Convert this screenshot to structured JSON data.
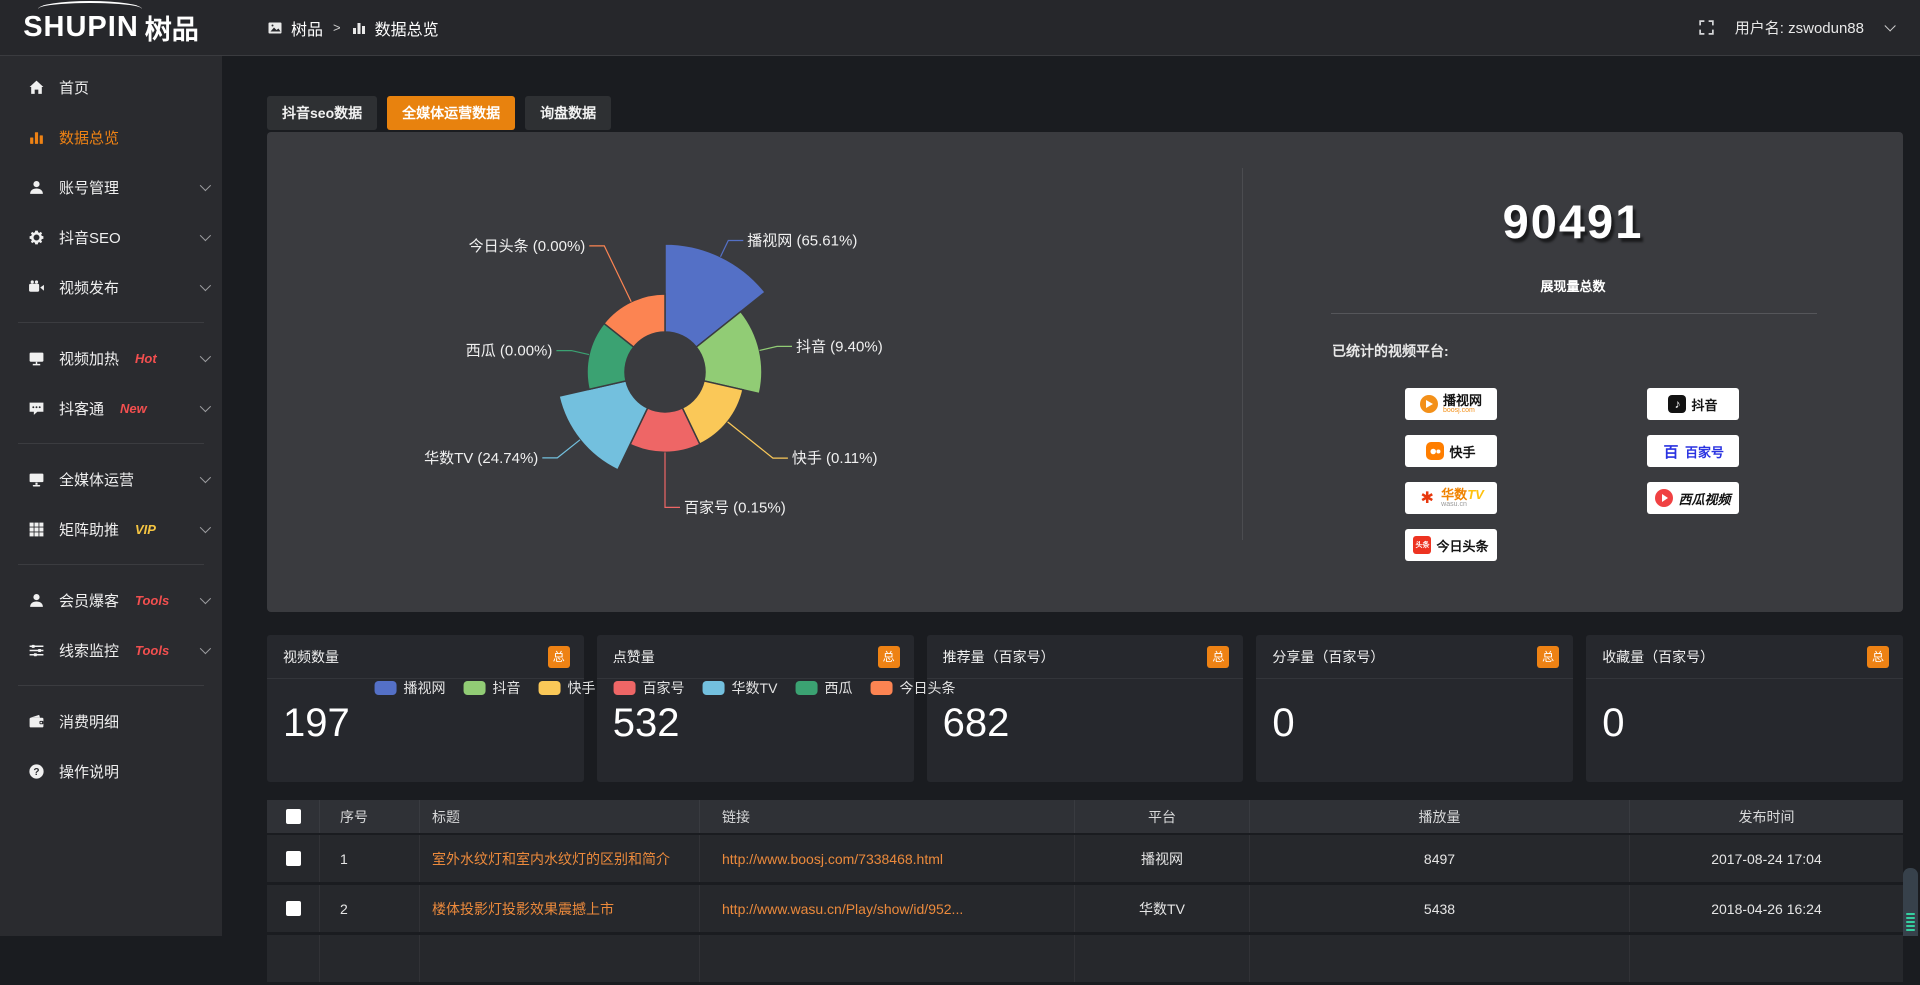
{
  "header": {
    "logo": "SHUPIN",
    "logo_cn": "树品",
    "breadcrumb": {
      "root": "树品",
      "separator": ">",
      "current": "数据总览"
    },
    "username_label": "用户名:",
    "username": "zswodun88"
  },
  "sidebar": {
    "items": [
      {
        "label": "首页",
        "icon": "home"
      },
      {
        "label": "数据总览",
        "icon": "chart",
        "active": true
      },
      {
        "label": "账号管理",
        "icon": "user",
        "chevron": true
      },
      {
        "label": "抖音SEO",
        "icon": "gear",
        "chevron": true
      },
      {
        "label": "视频发布",
        "icon": "video",
        "chevron": true
      },
      {
        "divider": true
      },
      {
        "label": "视频加热",
        "icon": "heat",
        "badge": "Hot",
        "badge_style": "red",
        "chevron": true
      },
      {
        "label": "抖客通",
        "icon": "chat",
        "badge": "New",
        "badge_style": "red",
        "chevron": true
      },
      {
        "divider": true
      },
      {
        "label": "全媒体运营",
        "icon": "monitor",
        "chevron": true
      },
      {
        "label": "矩阵助推",
        "icon": "grid",
        "badge": "VIP",
        "badge_style": "yellow",
        "chevron": true
      },
      {
        "divider": true
      },
      {
        "label": "会员爆客",
        "icon": "user",
        "badge": "Tools",
        "badge_style": "red",
        "chevron": true
      },
      {
        "label": "线索监控",
        "icon": "sliders",
        "badge": "Tools",
        "badge_style": "red",
        "chevron": true
      },
      {
        "divider": true
      },
      {
        "label": "消费明细",
        "icon": "wallet"
      },
      {
        "label": "操作说明",
        "icon": "question"
      }
    ]
  },
  "tabs": [
    {
      "label": "抖音seo数据",
      "active": false
    },
    {
      "label": "全媒体运营数据",
      "active": true
    },
    {
      "label": "询盘数据",
      "active": false
    }
  ],
  "chart_data": {
    "type": "pie",
    "rose": true,
    "categories": [
      "播视网",
      "抖音",
      "快手",
      "百家号",
      "华数TV",
      "西瓜",
      "今日头条"
    ],
    "values": [
      65.61,
      9.4,
      0.11,
      0.15,
      24.74,
      0.0,
      0.0
    ],
    "unit": "%",
    "colors": [
      "#5470c6",
      "#91cc75",
      "#fac858",
      "#ee6666",
      "#73c0de",
      "#3ba272",
      "#fc8452"
    ],
    "legend_position": "bottom",
    "label_format": "{name} ({value}%)"
  },
  "summary": {
    "total_value": "90491",
    "total_label": "展现量总数"
  },
  "platforms": {
    "label": "已统计的视频平台:",
    "left": [
      {
        "id": "boosj",
        "name": "播视网",
        "sub": "boosj.com"
      },
      {
        "id": "kuaishou",
        "name": "快手",
        "sub": ""
      },
      {
        "id": "wasu",
        "name": "华数TV",
        "sub": "wasu.cn"
      },
      {
        "id": "toutiao",
        "name": "今日头条",
        "sub": ""
      }
    ],
    "right": [
      {
        "id": "douyin",
        "name": "抖音",
        "sub": ""
      },
      {
        "id": "baijia",
        "name": "百家号",
        "sub": ""
      },
      {
        "id": "xigua",
        "name": "西瓜视频",
        "sub": ""
      }
    ]
  },
  "stat_cards": [
    {
      "title": "视频数量",
      "badge": "总",
      "value": "197"
    },
    {
      "title": "点赞量",
      "badge": "总",
      "value": "532"
    },
    {
      "title": "推荐量（百家号）",
      "badge": "总",
      "value": "682"
    },
    {
      "title": "分享量（百家号）",
      "badge": "总",
      "value": "0"
    },
    {
      "title": "收藏量（百家号）",
      "badge": "总",
      "value": "0"
    }
  ],
  "table": {
    "columns": [
      "",
      "序号",
      "标题",
      "链接",
      "平台",
      "播放量",
      "发布时间"
    ],
    "rows": [
      {
        "index": "1",
        "title": "室外水纹灯和室内水纹灯的区别和简介",
        "link": "http://www.boosj.com/7338468.html",
        "platform": "播视网",
        "views": "8497",
        "time": "2017-08-24 17:04"
      },
      {
        "index": "2",
        "title": "楼体投影灯投影效果震撼上市",
        "link": "http://www.wasu.cn/Play/show/id/952...",
        "platform": "华数TV",
        "views": "5438",
        "time": "2018-04-26 16:24"
      },
      {
        "index": "",
        "title": "",
        "link": "",
        "platform": "",
        "views": "",
        "time": ""
      }
    ]
  }
}
